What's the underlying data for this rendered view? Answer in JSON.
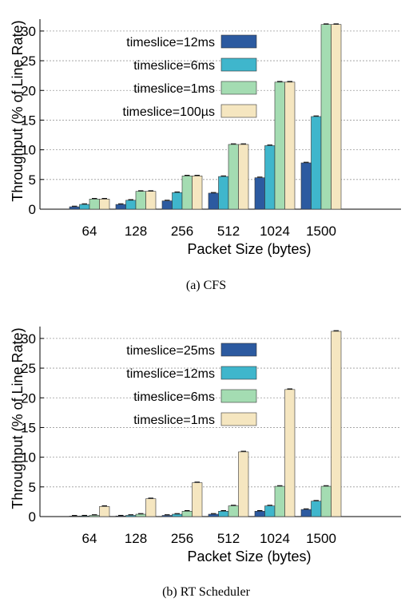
{
  "chart_data": [
    {
      "type": "bar",
      "caption": "(a) CFS",
      "xlabel": "Packet Size (bytes)",
      "ylabel": "Throughput (% of Line Rate)",
      "categories": [
        "64",
        "128",
        "256",
        "512",
        "1024",
        "1500"
      ],
      "ylim": [
        0,
        32
      ],
      "yticks": [
        0,
        5,
        10,
        15,
        20,
        25,
        30
      ],
      "grid": true,
      "legend_position": "top-left",
      "series": [
        {
          "name": "timeslice=12ms",
          "color": "#2c5aa0",
          "values": [
            0.4,
            0.8,
            1.4,
            2.7,
            5.3,
            7.8
          ]
        },
        {
          "name": "timeslice=6ms",
          "color": "#3fb6cc",
          "values": [
            0.8,
            1.5,
            2.8,
            5.5,
            10.7,
            15.6
          ]
        },
        {
          "name": "timeslice=1ms",
          "color": "#a4dcb2",
          "values": [
            1.7,
            3.0,
            5.6,
            10.9,
            21.4,
            31.1
          ]
        },
        {
          "name": "timeslice=100µs",
          "color": "#f5e6c0",
          "values": [
            1.7,
            3.0,
            5.6,
            10.9,
            21.4,
            31.1
          ]
        }
      ]
    },
    {
      "type": "bar",
      "caption": "(b) RT Scheduler",
      "xlabel": "Packet Size (bytes)",
      "ylabel": "Throughput (% of Line Rate)",
      "categories": [
        "64",
        "128",
        "256",
        "512",
        "1024",
        "1500"
      ],
      "ylim": [
        0,
        32
      ],
      "yticks": [
        0,
        5,
        10,
        15,
        20,
        25,
        30
      ],
      "grid": true,
      "legend_position": "top-left",
      "series": [
        {
          "name": "timeslice=25ms",
          "color": "#2c5aa0",
          "values": [
            0.05,
            0.1,
            0.2,
            0.4,
            0.9,
            1.2
          ]
        },
        {
          "name": "timeslice=12ms",
          "color": "#3fb6cc",
          "values": [
            0.1,
            0.2,
            0.4,
            0.9,
            1.8,
            2.6
          ]
        },
        {
          "name": "timeslice=6ms",
          "color": "#a4dcb2",
          "values": [
            0.2,
            0.4,
            0.9,
            1.8,
            5.1,
            5.1
          ]
        },
        {
          "name": "timeslice=1ms",
          "color": "#f5e6c0",
          "values": [
            1.7,
            3.0,
            5.7,
            10.9,
            21.4,
            31.2
          ]
        }
      ]
    }
  ]
}
